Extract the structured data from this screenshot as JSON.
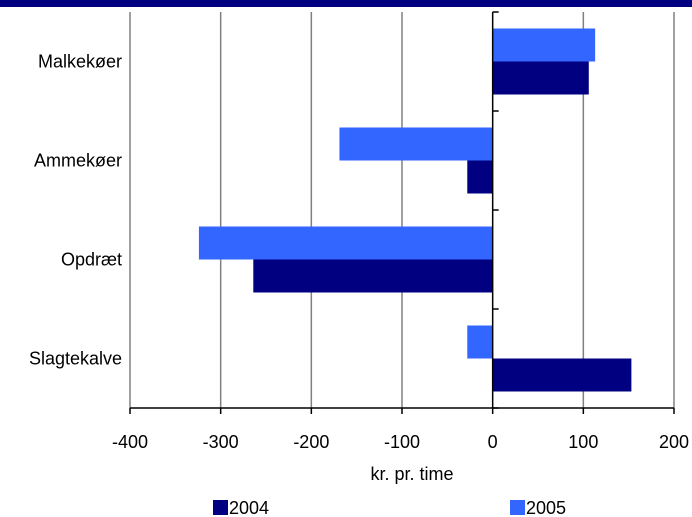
{
  "chart_data": {
    "type": "bar",
    "orientation": "horizontal",
    "categories": [
      "Malkekøer",
      "Ammekøer",
      "Opdræt",
      "Slagtekalve"
    ],
    "series": [
      {
        "name": "2004",
        "color": "#000080",
        "values": [
          106,
          -28,
          -264,
          153
        ]
      },
      {
        "name": "2005",
        "color": "#3366FF",
        "values": [
          113,
          -169,
          -324,
          -28
        ]
      }
    ],
    "xlabel": "kr. pr. time",
    "ylabel": "",
    "xlim": [
      -400,
      200
    ],
    "xticks": [
      "-400",
      "-300",
      "-200",
      "-100",
      "0",
      "100",
      "200"
    ],
    "grid": true,
    "legend_position": "bottom"
  },
  "colors": {
    "header_bar": "#000080",
    "gridline": "#808080"
  }
}
